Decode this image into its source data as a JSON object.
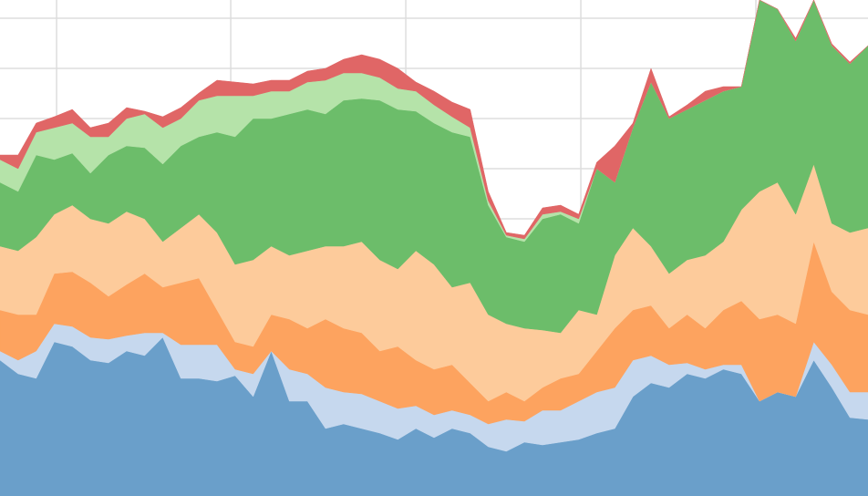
{
  "chart_data": {
    "type": "stacked-area",
    "x": [
      0,
      1,
      2,
      3,
      4,
      5,
      6,
      7,
      8,
      9,
      10,
      11,
      12,
      13,
      14,
      15,
      16,
      17,
      18,
      19,
      20,
      21,
      22,
      23,
      24,
      25,
      26,
      27,
      28,
      29,
      30,
      31,
      32,
      33,
      34,
      35,
      36,
      37,
      38,
      39,
      40,
      41,
      42,
      43,
      44,
      45,
      46,
      47,
      48
    ],
    "xlim": [
      0,
      48
    ],
    "xticks": [
      3.13,
      12.76,
      22.44,
      32.12,
      41.8
    ],
    "ylim": [
      0,
      544
    ],
    "yticks": [
      29,
      84,
      139,
      194,
      249,
      304,
      359,
      414,
      469,
      524
    ],
    "grid": true,
    "series": [
      {
        "color": "#6a9fca",
        "values": [
          149,
          134,
          129,
          169,
          164,
          149,
          146,
          159,
          154,
          174,
          129,
          129,
          126,
          132,
          109,
          159,
          104,
          104,
          74,
          79,
          74,
          69,
          62,
          74,
          64,
          74,
          69,
          54,
          49,
          59,
          56,
          59,
          62,
          69,
          74,
          109,
          124,
          119,
          134,
          129,
          139,
          134,
          104,
          114,
          109,
          149,
          119,
          86,
          84
        ]
      },
      {
        "color": "#c6d8ee",
        "values": [
          10,
          15,
          30,
          20,
          22,
          25,
          26,
          17,
          25,
          5,
          37,
          37,
          40,
          7,
          25,
          0,
          35,
          30,
          45,
          35,
          38,
          35,
          34,
          25,
          25,
          20,
          20,
          25,
          35,
          23,
          38,
          35,
          42,
          45,
          45,
          40,
          30,
          25,
          12,
          10,
          5,
          10,
          0,
          0,
          0,
          20,
          25,
          28,
          30
        ]
      },
      {
        "color": "#fda35f",
        "values": [
          45,
          50,
          40,
          55,
          60,
          60,
          47,
          56,
          65,
          50,
          68,
          73,
          38,
          30,
          30,
          40,
          55,
          50,
          75,
          70,
          67,
          55,
          68,
          50,
          50,
          50,
          35,
          25,
          30,
          22,
          25,
          35,
          30,
          45,
          65,
          55,
          55,
          40,
          53,
          45,
          60,
          70,
          90,
          85,
          80,
          110,
          80,
          90,
          85
        ]
      },
      {
        "color": "#fdcb9b",
        "values": [
          70,
          70,
          85,
          65,
          73,
          70,
          80,
          80,
          60,
          50,
          60,
          70,
          85,
          85,
          95,
          75,
          70,
          85,
          80,
          90,
          100,
          100,
          85,
          120,
          115,
          85,
          110,
          95,
          75,
          80,
          63,
          50,
          70,
          40,
          80,
          90,
          65,
          60,
          60,
          80,
          75,
          100,
          140,
          145,
          120,
          85,
          75,
          85,
          95
        ]
      },
      {
        "color": "#6cbd6a",
        "values": [
          70,
          65,
          90,
          60,
          57,
          50,
          75,
          72,
          78,
          85,
          90,
          85,
          110,
          140,
          155,
          140,
          155,
          155,
          145,
          160,
          157,
          175,
          175,
          153,
          155,
          170,
          160,
          120,
          95,
          95,
          122,
          130,
          95,
          160,
          80,
          110,
          180,
          170,
          165,
          170,
          165,
          135,
          210,
          190,
          190,
          180,
          195,
          185,
          200
        ]
      },
      {
        "color": "#b5e3a9",
        "values": [
          25,
          25,
          25,
          35,
          33,
          40,
          20,
          30,
          37,
          40,
          30,
          40,
          40,
          45,
          25,
          30,
          25,
          30,
          37,
          30,
          28,
          25,
          23,
          22,
          20,
          17,
          10,
          5,
          2,
          3,
          5,
          3,
          5,
          0,
          0,
          0,
          0,
          0,
          0,
          0,
          0,
          0,
          0,
          0,
          0,
          0,
          0,
          0,
          0
        ]
      },
      {
        "color": "#e06666",
        "values": [
          5,
          15,
          10,
          12,
          15,
          10,
          15,
          12,
          3,
          12,
          12,
          8,
          17,
          15,
          13,
          12,
          12,
          12,
          13,
          15,
          20,
          20,
          22,
          10,
          15,
          16,
          20,
          10,
          3,
          4,
          7,
          7,
          5,
          7,
          40,
          5,
          15,
          2,
          5,
          10,
          5,
          0,
          0,
          0,
          3,
          0,
          2,
          2,
          0
        ]
      }
    ]
  }
}
